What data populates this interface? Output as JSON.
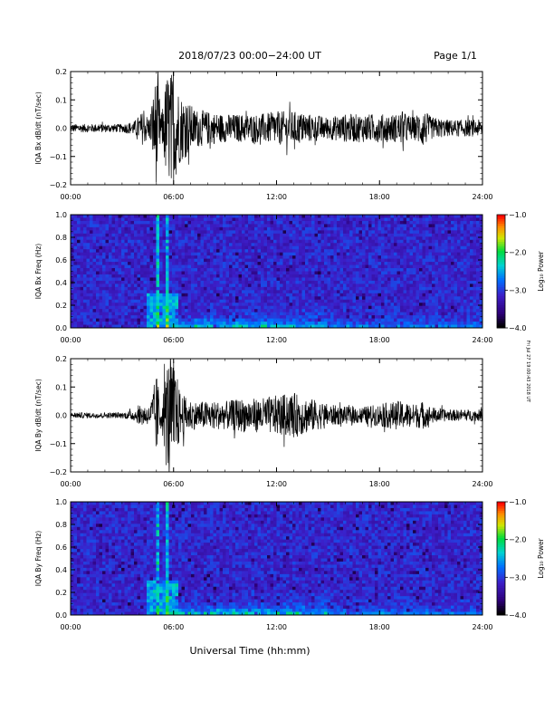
{
  "header": {
    "title": "2018/07/23  00:00−24:00 UT",
    "page": "Page 1/1"
  },
  "footer": {
    "xlabel": "Universal Time (hh:mm)",
    "side_stamp": "Fri Jul 27 19:00:43 2018 UT"
  },
  "colors": {
    "waveform": "#000000",
    "spectrogram_background": "#3a1ea8"
  },
  "chart_data": [
    {
      "type": "line",
      "ylabel": "IQA Bx dB/dt (nT/sec)",
      "x_ticks": [
        "00:00",
        "06:00",
        "12:00",
        "18:00",
        "24:00"
      ],
      "xlim_hours": [
        0,
        24
      ],
      "yticks": [
        "0.2",
        "0.1",
        "0.0",
        "−0.1",
        "−0.2"
      ],
      "ylim": [
        -0.2,
        0.2
      ],
      "envelope": {
        "hours": [
          0,
          3,
          3.7,
          4.2,
          4.6,
          5.0,
          5.3,
          5.6,
          5.75,
          6.0,
          6.4,
          6.8,
          7.2,
          8,
          9,
          10,
          11,
          12,
          13,
          14,
          15,
          16,
          17,
          18,
          19,
          19.3,
          20,
          20.5,
          21,
          22,
          23,
          24
        ],
        "amplitude": [
          0.015,
          0.015,
          0.025,
          0.06,
          0.04,
          0.2,
          0.05,
          0.2,
          0.2,
          0.2,
          0.12,
          0.1,
          0.07,
          0.06,
          0.05,
          0.05,
          0.05,
          0.06,
          0.06,
          0.05,
          0.04,
          0.05,
          0.05,
          0.05,
          0.05,
          0.06,
          0.04,
          0.07,
          0.04,
          0.03,
          0.03,
          0.03
        ]
      }
    },
    {
      "type": "heatmap",
      "ylabel": "IQA Bx Freq (Hz)",
      "x_ticks": [
        "00:00",
        "06:00",
        "12:00",
        "18:00",
        "24:00"
      ],
      "xlim_hours": [
        0,
        24
      ],
      "yticks": [
        "1.0",
        "0.8",
        "0.6",
        "0.4",
        "0.2",
        "0.0"
      ],
      "ylim": [
        0,
        1.0
      ],
      "colorbar": {
        "label": "Log₁₀ Power",
        "ticks": [
          "−1.0",
          "−2.0",
          "−3.0",
          "−4.0"
        ],
        "range": [
          -4.0,
          -1.0
        ]
      }
    },
    {
      "type": "line",
      "ylabel": "IQA By dB/dt (nT/sec)",
      "x_ticks": [
        "00:00",
        "06:00",
        "12:00",
        "18:00",
        "24:00"
      ],
      "xlim_hours": [
        0,
        24
      ],
      "yticks": [
        "0.2",
        "0.1",
        "0.0",
        "−0.1",
        "−0.2"
      ],
      "ylim": [
        -0.2,
        0.2
      ],
      "envelope": {
        "hours": [
          0,
          3,
          3.7,
          4.2,
          4.6,
          5.0,
          5.3,
          5.6,
          5.75,
          6.0,
          6.4,
          6.8,
          7.2,
          8,
          9,
          10,
          11,
          12,
          13,
          14,
          15,
          16,
          17,
          18,
          19,
          19.3,
          20,
          20.5,
          21,
          22,
          23,
          24
        ],
        "amplitude": [
          0.01,
          0.01,
          0.02,
          0.04,
          0.03,
          0.15,
          0.04,
          0.2,
          0.2,
          0.2,
          0.08,
          0.06,
          0.05,
          0.05,
          0.05,
          0.06,
          0.06,
          0.07,
          0.08,
          0.06,
          0.04,
          0.03,
          0.03,
          0.04,
          0.05,
          0.05,
          0.04,
          0.05,
          0.03,
          0.02,
          0.02,
          0.02
        ]
      }
    },
    {
      "type": "heatmap",
      "ylabel": "IQA By Freq (Hz)",
      "x_ticks": [
        "00:00",
        "06:00",
        "12:00",
        "18:00",
        "24:00"
      ],
      "xlim_hours": [
        0,
        24
      ],
      "yticks": [
        "1.0",
        "0.8",
        "0.6",
        "0.4",
        "0.2",
        "0.0"
      ],
      "ylim": [
        0,
        1.0
      ],
      "colorbar": {
        "label": "Log₁₀ Power",
        "ticks": [
          "−1.0",
          "−2.0",
          "−3.0",
          "−4.0"
        ],
        "range": [
          -4.0,
          -1.0
        ]
      }
    }
  ]
}
